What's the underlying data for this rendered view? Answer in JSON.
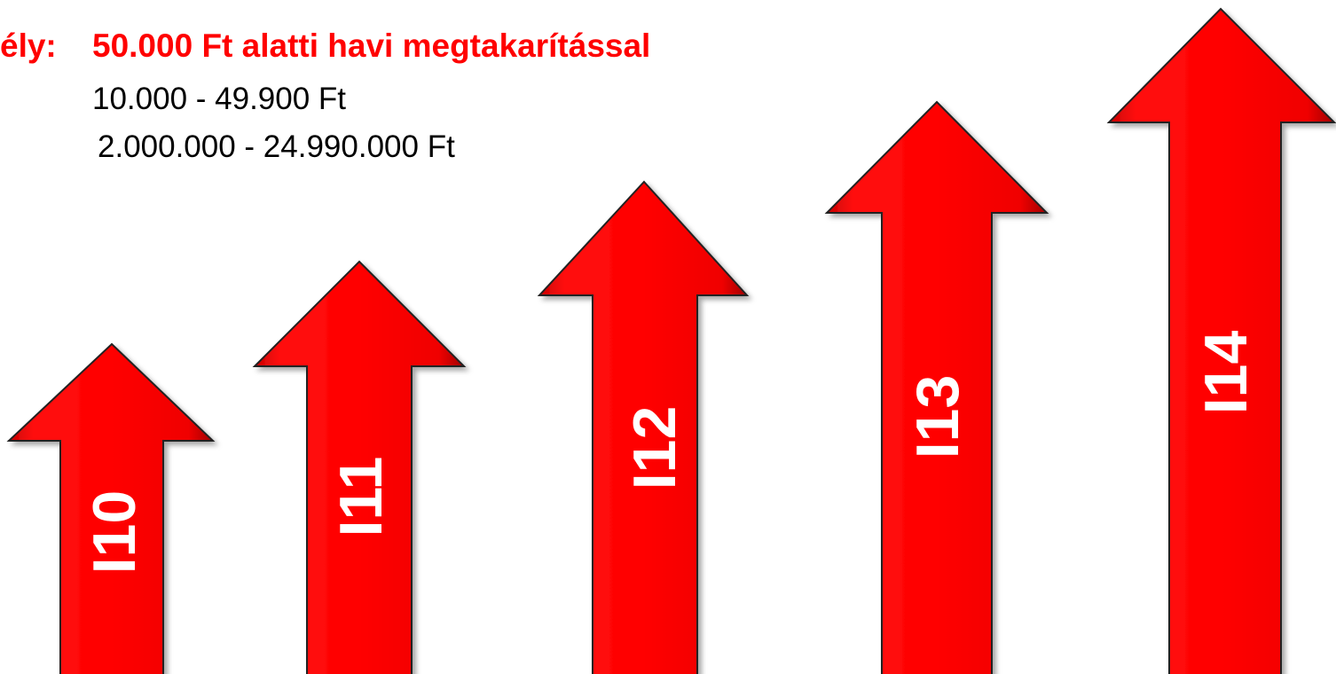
{
  "header": {
    "prefix": "ély:",
    "title": "50.000 Ft alatti havi megtakarítással",
    "lines": [
      "10.000 - 49.900 Ft",
      "2.000.000 - 24.990.000 Ft"
    ]
  },
  "arrows": [
    {
      "label": "I10"
    },
    {
      "label": "I11"
    },
    {
      "label": "I12"
    },
    {
      "label": "I13"
    },
    {
      "label": "I14"
    }
  ]
}
